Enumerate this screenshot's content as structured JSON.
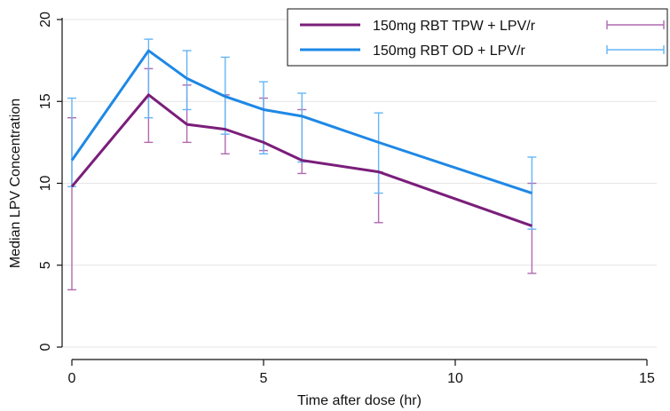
{
  "chart_data": {
    "type": "line",
    "xlabel": "Time after dose (hr)",
    "ylabel": "Median LPV Concentration",
    "xlim": [
      0,
      15
    ],
    "ylim": [
      0,
      20
    ],
    "xticks": [
      0,
      5,
      10,
      15
    ],
    "yticks": [
      0,
      5,
      10,
      15,
      20
    ],
    "grid": "horizontal",
    "legend_position": "top-right",
    "series": [
      {
        "name": "150mg RBT TPW + LPV/r",
        "color": "#7a1e7a",
        "x": [
          0,
          2,
          3,
          4,
          5,
          6,
          8,
          12
        ],
        "y": [
          9.8,
          15.4,
          13.6,
          13.3,
          12.5,
          11.4,
          10.7,
          7.4
        ],
        "err_low": [
          3.5,
          12.5,
          12.5,
          11.8,
          12.0,
          10.6,
          7.6,
          4.5
        ],
        "err_high": [
          14.0,
          17.0,
          16.0,
          15.4,
          15.2,
          14.5,
          10.7,
          10.0
        ]
      },
      {
        "name": "150mg RBT OD + LPV/r",
        "color": "#1e88e5",
        "x": [
          0,
          2,
          3,
          4,
          5,
          6,
          8,
          12
        ],
        "y": [
          11.4,
          18.1,
          16.4,
          15.3,
          14.5,
          14.1,
          12.5,
          9.4
        ],
        "err_low": [
          9.8,
          14.0,
          14.5,
          13.0,
          11.8,
          11.3,
          9.4,
          7.2
        ],
        "err_high": [
          15.2,
          18.8,
          18.1,
          17.7,
          16.2,
          15.5,
          14.3,
          11.6
        ]
      }
    ]
  }
}
